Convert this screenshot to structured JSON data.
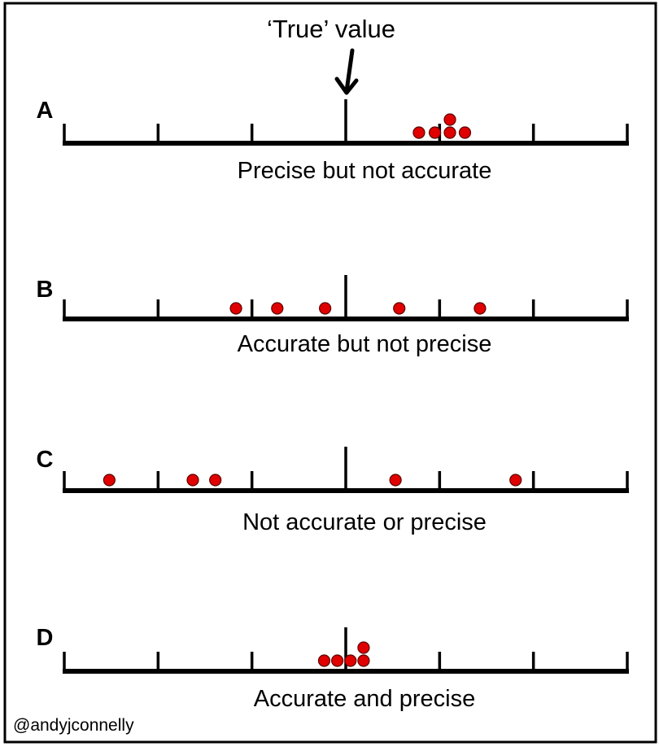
{
  "true_value_label": "‘True’ value",
  "credit": "@andyjconnelly",
  "colors": {
    "dot_fill": "#e00000",
    "dot_stroke": "#5a0000",
    "line": "#000000",
    "frame": "#000000"
  },
  "axis": {
    "min": 0,
    "max": 6,
    "true_value": 3,
    "ticks": [
      0,
      1,
      2,
      3,
      4,
      5,
      6
    ]
  },
  "panels": [
    {
      "letter": "A",
      "caption": "Precise but not accurate",
      "points": [
        {
          "x": 3.78,
          "level": 0
        },
        {
          "x": 3.95,
          "level": 0
        },
        {
          "x": 4.11,
          "level": 0
        },
        {
          "x": 4.27,
          "level": 0
        },
        {
          "x": 4.11,
          "level": 1
        }
      ]
    },
    {
      "letter": "B",
      "caption": "Accurate but not precise",
      "points": [
        {
          "x": 1.83,
          "level": 0
        },
        {
          "x": 2.27,
          "level": 0
        },
        {
          "x": 2.78,
          "level": 0
        },
        {
          "x": 3.57,
          "level": 0
        },
        {
          "x": 4.43,
          "level": 0
        }
      ]
    },
    {
      "letter": "C",
      "caption": "Not accurate or precise",
      "points": [
        {
          "x": 0.48,
          "level": 0
        },
        {
          "x": 1.37,
          "level": 0
        },
        {
          "x": 1.61,
          "level": 0
        },
        {
          "x": 3.53,
          "level": 0
        },
        {
          "x": 4.81,
          "level": 0
        }
      ]
    },
    {
      "letter": "D",
      "caption": "Accurate and precise",
      "points": [
        {
          "x": 2.77,
          "level": 0
        },
        {
          "x": 2.91,
          "level": 0
        },
        {
          "x": 3.05,
          "level": 0
        },
        {
          "x": 3.19,
          "level": 0
        },
        {
          "x": 3.19,
          "level": 1
        }
      ]
    }
  ]
}
